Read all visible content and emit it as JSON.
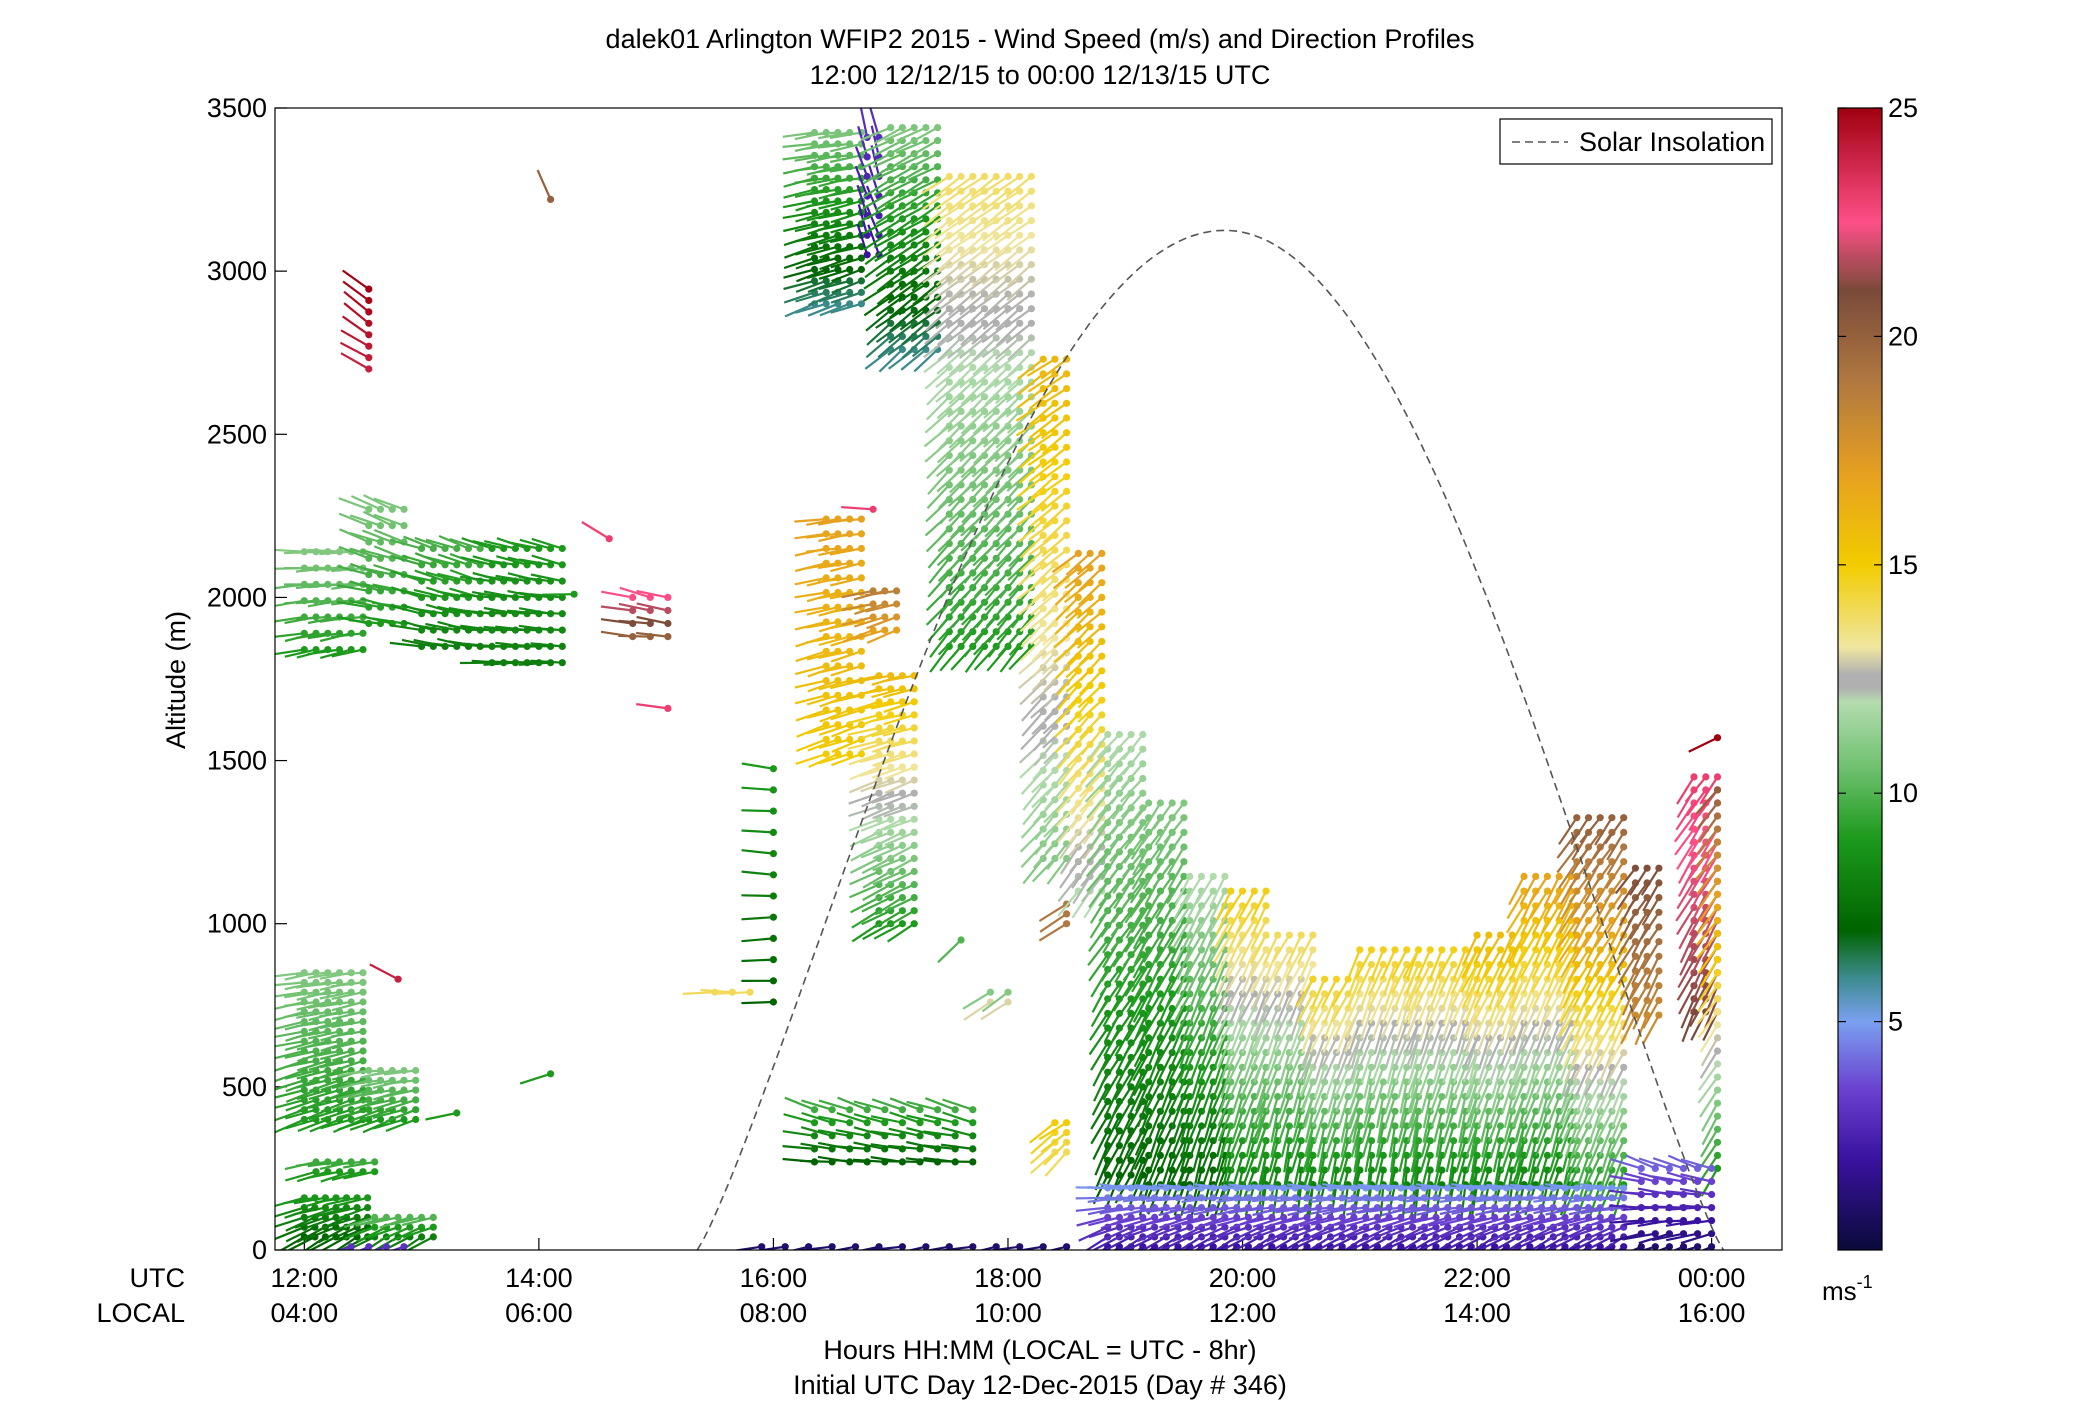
{
  "chart_data": {
    "type": "wind-profile",
    "title": "dalek01 Arlington WFIP2 2015 - Wind Speed (m/s) and Direction Profiles",
    "subtitle": "12:00 12/12/15 to 00:00 12/13/15  UTC",
    "ylabel": "Altitude (m)",
    "ylim": [
      0,
      3500
    ],
    "yticks": [
      0,
      500,
      1000,
      1500,
      2000,
      2500,
      3000,
      3500
    ],
    "xlim_hours_utc": [
      11.75,
      24.6
    ],
    "x_axis": {
      "utc_row_label": "UTC",
      "local_row_label": "LOCAL",
      "utc_ticks": [
        {
          "hour": 12,
          "utc": "12:00",
          "local": "04:00"
        },
        {
          "hour": 14,
          "utc": "14:00",
          "local": "06:00"
        },
        {
          "hour": 16,
          "utc": "16:00",
          "local": "08:00"
        },
        {
          "hour": 18,
          "utc": "18:00",
          "local": "10:00"
        },
        {
          "hour": 20,
          "utc": "20:00",
          "local": "12:00"
        },
        {
          "hour": 22,
          "utc": "22:00",
          "local": "14:00"
        },
        {
          "hour": 24,
          "utc": "00:00",
          "local": "16:00"
        }
      ],
      "xlabel": "Hours HH:MM  (LOCAL = UTC - 8hr)",
      "xlabel2": "Initial UTC Day 12-Dec-2015 (Day # 346)"
    },
    "legend": {
      "entry": "Solar Insolation",
      "placement": "top-right",
      "style": "dashed gray"
    },
    "solar_insolation_curve": {
      "sunrise_hour": 15.35,
      "peak_hour": 19.85,
      "sunset_hour": 24.1,
      "peak_altitude_scale": 3125
    },
    "colorbar": {
      "min": 0,
      "max": 25,
      "ticks": [
        5,
        10,
        15,
        20,
        25
      ],
      "unit_label": "ms",
      "unit_exponent": "-1",
      "stops": [
        {
          "v": 0,
          "c": "#0a0a3a"
        },
        {
          "v": 2,
          "c": "#3a12a0"
        },
        {
          "v": 3.5,
          "c": "#6a40d0"
        },
        {
          "v": 5,
          "c": "#7aa0f0"
        },
        {
          "v": 6,
          "c": "#3a8a8a"
        },
        {
          "v": 7,
          "c": "#006400"
        },
        {
          "v": 9,
          "c": "#1c9a1c"
        },
        {
          "v": 10.5,
          "c": "#6cbf6c"
        },
        {
          "v": 12,
          "c": "#b4dcb0"
        },
        {
          "v": 12.3,
          "c": "#b0b0b0"
        },
        {
          "v": 12.6,
          "c": "#b0b0b0"
        },
        {
          "v": 13.2,
          "c": "#f0e6a0"
        },
        {
          "v": 15,
          "c": "#f2cc00"
        },
        {
          "v": 17,
          "c": "#e6a020"
        },
        {
          "v": 19,
          "c": "#b07840"
        },
        {
          "v": 21,
          "c": "#7a4a3a"
        },
        {
          "v": 22.5,
          "c": "#ff4f88"
        },
        {
          "v": 25,
          "c": "#a00010"
        }
      ]
    },
    "series": [
      {
        "t0": 12.0,
        "t1": 12.55,
        "dt": 0.09,
        "z0": 40,
        "z1": 170,
        "dz": 30,
        "spd": [
          7,
          9
        ],
        "dir": [
          240,
          260
        ]
      },
      {
        "t0": 12.6,
        "t1": 13.1,
        "dt": 0.1,
        "z0": 40,
        "z1": 100,
        "dz": 30,
        "spd": [
          8,
          10
        ],
        "dir": [
          240,
          255
        ]
      },
      {
        "t0": 12.1,
        "t1": 12.6,
        "dt": 0.1,
        "z0": 240,
        "z1": 290,
        "dz": 30,
        "spd": [
          9,
          10
        ],
        "dir": [
          255,
          265
        ]
      },
      {
        "t0": 12.0,
        "t1": 12.5,
        "dt": 0.1,
        "z0": 400,
        "z1": 870,
        "dz": 30,
        "spd": [
          9,
          11
        ],
        "dir": [
          250,
          262
        ]
      },
      {
        "t0": 12.55,
        "t1": 12.95,
        "dt": 0.1,
        "z0": 400,
        "z1": 560,
        "dz": 30,
        "spd": [
          9,
          11
        ],
        "dir": [
          250,
          262
        ]
      },
      {
        "t0": 13.3,
        "t1": 13.35,
        "dt": 0.1,
        "z0": 420,
        "z1": 430,
        "dz": 30,
        "spd": [
          9,
          9
        ],
        "dir": [
          255,
          255
        ]
      },
      {
        "t0": 14.1,
        "t1": 14.15,
        "dt": 0.1,
        "z0": 540,
        "z1": 560,
        "dz": 30,
        "spd": [
          9,
          9
        ],
        "dir": [
          255,
          255
        ]
      },
      {
        "t0": 12.8,
        "t1": 12.85,
        "dt": 0.1,
        "z0": 830,
        "z1": 830,
        "dz": 30,
        "spd": [
          24,
          24
        ],
        "dir": [
          300,
          300
        ]
      },
      {
        "t0": 12.0,
        "t1": 12.5,
        "dt": 0.1,
        "z0": 1840,
        "z1": 2150,
        "dz": 50,
        "spd": [
          9,
          11
        ],
        "dir": [
          258,
          270
        ]
      },
      {
        "t0": 12.55,
        "t1": 12.9,
        "dt": 0.1,
        "z0": 1920,
        "z1": 2300,
        "dz": 50,
        "spd": [
          9,
          11
        ],
        "dir": [
          280,
          295
        ]
      },
      {
        "t0": 13.0,
        "t1": 13.55,
        "dt": 0.1,
        "z0": 1850,
        "z1": 2180,
        "dz": 50,
        "spd": [
          8,
          10
        ],
        "dir": [
          280,
          290
        ]
      },
      {
        "t0": 13.6,
        "t1": 14.2,
        "dt": 0.1,
        "z0": 1800,
        "z1": 2150,
        "dz": 50,
        "spd": [
          8,
          9
        ],
        "dir": [
          270,
          285
        ]
      },
      {
        "t0": 14.3,
        "t1": 14.35,
        "dt": 0.1,
        "z0": 2010,
        "z1": 2010,
        "dz": 30,
        "spd": [
          9,
          9
        ],
        "dir": [
          265,
          265
        ]
      },
      {
        "t0": 12.55,
        "t1": 12.6,
        "dt": 0.1,
        "z0": 2700,
        "z1": 2960,
        "dz": 35,
        "spd": [
          24,
          25
        ],
        "dir": [
          300,
          310
        ]
      },
      {
        "t0": 14.1,
        "t1": 14.15,
        "dt": 0.1,
        "z0": 3220,
        "z1": 3220,
        "dz": 30,
        "spd": [
          20,
          20
        ],
        "dir": [
          340,
          340
        ]
      },
      {
        "t0": 14.6,
        "t1": 14.65,
        "dt": 0.1,
        "z0": 2180,
        "z1": 2180,
        "dz": 30,
        "spd": [
          23,
          23
        ],
        "dir": [
          300,
          300
        ]
      },
      {
        "t0": 14.8,
        "t1": 15.1,
        "dt": 0.15,
        "z0": 1880,
        "z1": 2020,
        "dz": 40,
        "spd": [
          20,
          23
        ],
        "dir": [
          275,
          285
        ]
      },
      {
        "t0": 15.1,
        "t1": 15.15,
        "dt": 0.1,
        "z0": 1660,
        "z1": 1660,
        "dz": 30,
        "spd": [
          23,
          23
        ],
        "dir": [
          280,
          280
        ]
      },
      {
        "t0": 15.5,
        "t1": 15.8,
        "dt": 0.15,
        "z0": 790,
        "z1": 790,
        "dz": 30,
        "spd": [
          14,
          10
        ],
        "dir": [
          270,
          270
        ]
      },
      {
        "t0": 16.0,
        "t1": 16.05,
        "dt": 0.1,
        "z0": 760,
        "z1": 1490,
        "dz": 65,
        "spd": [
          7,
          9
        ],
        "dir": [
          265,
          278
        ]
      },
      {
        "t0": 16.45,
        "t1": 16.8,
        "dt": 0.1,
        "z0": 1520,
        "z1": 2260,
        "dz": 45,
        "spd": [
          15,
          17
        ],
        "dir": [
          250,
          262
        ]
      },
      {
        "t0": 16.9,
        "t1": 17.2,
        "dt": 0.1,
        "z0": 1000,
        "z1": 1780,
        "dz": 40,
        "spd": [
          9,
          16
        ],
        "dir": [
          240,
          258
        ]
      },
      {
        "t0": 16.85,
        "t1": 17.1,
        "dt": 0.1,
        "z0": 1900,
        "z1": 2050,
        "dz": 40,
        "spd": [
          17,
          19
        ],
        "dir": [
          250,
          260
        ]
      },
      {
        "t0": 16.85,
        "t1": 16.9,
        "dt": 0.1,
        "z0": 2270,
        "z1": 2270,
        "dz": 30,
        "spd": [
          23,
          23
        ],
        "dir": [
          270,
          270
        ]
      },
      {
        "t0": 16.35,
        "t1": 17.8,
        "dt": 0.15,
        "z0": 270,
        "z1": 450,
        "dz": 40,
        "spd": [
          7,
          10
        ],
        "dir": [
          275,
          290
        ]
      },
      {
        "t0": 17.6,
        "t1": 17.65,
        "dt": 0.1,
        "z0": 950,
        "z1": 950,
        "dz": 30,
        "spd": [
          10,
          10
        ],
        "dir": [
          230,
          230
        ]
      },
      {
        "t0": 17.85,
        "t1": 18.0,
        "dt": 0.15,
        "z0": 760,
        "z1": 790,
        "dz": 30,
        "spd": [
          13,
          11
        ],
        "dir": [
          235,
          235
        ]
      },
      {
        "t0": 18.4,
        "t1": 18.55,
        "dt": 0.1,
        "z0": 300,
        "z1": 390,
        "dz": 30,
        "spd": [
          14,
          15
        ],
        "dir": [
          225,
          235
        ]
      },
      {
        "t0": 18.5,
        "t1": 18.55,
        "dt": 0.1,
        "z0": 1000,
        "z1": 1060,
        "dz": 30,
        "spd": [
          19,
          19
        ],
        "dir": [
          240,
          240
        ]
      },
      {
        "t0": 16.35,
        "t1": 16.75,
        "dt": 0.1,
        "z0": 2900,
        "z1": 3450,
        "dz": 35,
        "spd": [
          6,
          11
        ],
        "dir": [
          250,
          262
        ]
      },
      {
        "t0": 16.8,
        "t1": 16.95,
        "dt": 0.1,
        "z0": 3050,
        "z1": 3450,
        "dz": 60,
        "spd": [
          2,
          3
        ],
        "dir": [
          340,
          345
        ]
      },
      {
        "t0": 17.0,
        "t1": 17.45,
        "dt": 0.1,
        "z0": 2760,
        "z1": 3460,
        "dz": 40,
        "spd": [
          6,
          11
        ],
        "dir": [
          230,
          245
        ]
      },
      {
        "t0": 17.5,
        "t1": 18.25,
        "dt": 0.1,
        "z0": 1850,
        "z1": 3330,
        "dz": 45,
        "spd": [
          9,
          14
        ],
        "dir": [
          220,
          235
        ]
      },
      {
        "t0": 18.3,
        "t1": 18.55,
        "dt": 0.1,
        "z0": 1200,
        "z1": 2740,
        "dz": 45,
        "spd": [
          11,
          16
        ],
        "dir": [
          220,
          235
        ]
      },
      {
        "t0": 18.6,
        "t1": 18.85,
        "dt": 0.1,
        "z0": 1100,
        "z1": 2140,
        "dz": 45,
        "spd": [
          12,
          17
        ],
        "dir": [
          215,
          230
        ]
      },
      {
        "t0": 18.85,
        "t1": 19.2,
        "dt": 0.1,
        "z0": 230,
        "z1": 1620,
        "dz": 45,
        "spd": [
          7,
          12
        ],
        "dir": [
          205,
          222
        ]
      },
      {
        "t0": 19.2,
        "t1": 19.5,
        "dt": 0.1,
        "z0": 200,
        "z1": 1380,
        "dz": 45,
        "spd": [
          7,
          11
        ],
        "dir": [
          200,
          215
        ]
      },
      {
        "t0": 19.55,
        "t1": 19.9,
        "dt": 0.1,
        "z0": 200,
        "z1": 1160,
        "dz": 45,
        "spd": [
          7,
          12
        ],
        "dir": [
          195,
          210
        ]
      },
      {
        "t0": 19.9,
        "t1": 20.2,
        "dt": 0.1,
        "z0": 200,
        "z1": 1130,
        "dz": 45,
        "spd": [
          8,
          15
        ],
        "dir": [
          195,
          210
        ]
      },
      {
        "t0": 20.2,
        "t1": 20.6,
        "dt": 0.1,
        "z0": 200,
        "z1": 970,
        "dz": 45,
        "spd": [
          8,
          14
        ],
        "dir": [
          190,
          208
        ]
      },
      {
        "t0": 20.6,
        "t1": 21.0,
        "dt": 0.1,
        "z0": 200,
        "z1": 870,
        "dz": 45,
        "spd": [
          8,
          15
        ],
        "dir": [
          190,
          208
        ]
      },
      {
        "t0": 21.0,
        "t1": 21.5,
        "dt": 0.1,
        "z0": 200,
        "z1": 950,
        "dz": 45,
        "spd": [
          8,
          15
        ],
        "dir": [
          188,
          205
        ]
      },
      {
        "t0": 21.5,
        "t1": 22.0,
        "dt": 0.1,
        "z0": 200,
        "z1": 950,
        "dz": 45,
        "spd": [
          8,
          15
        ],
        "dir": [
          190,
          205
        ]
      },
      {
        "t0": 22.0,
        "t1": 22.4,
        "dt": 0.1,
        "z0": 200,
        "z1": 990,
        "dz": 45,
        "spd": [
          8,
          16
        ],
        "dir": [
          192,
          208
        ]
      },
      {
        "t0": 22.4,
        "t1": 22.85,
        "dt": 0.1,
        "z0": 200,
        "z1": 1170,
        "dz": 45,
        "spd": [
          8,
          17
        ],
        "dir": [
          195,
          210
        ]
      },
      {
        "t0": 22.85,
        "t1": 23.3,
        "dt": 0.1,
        "z0": 200,
        "z1": 1330,
        "dz": 45,
        "spd": [
          9,
          20
        ],
        "dir": [
          200,
          215
        ]
      },
      {
        "t0": 23.35,
        "t1": 23.55,
        "dt": 0.1,
        "z0": 720,
        "z1": 1210,
        "dz": 45,
        "spd": [
          18,
          21
        ],
        "dir": [
          205,
          215
        ]
      },
      {
        "t0": 23.85,
        "t1": 24.05,
        "dt": 0.1,
        "z0": 730,
        "z1": 1450,
        "dz": 40,
        "spd": [
          21,
          23
        ],
        "dir": [
          205,
          215
        ]
      },
      {
        "t0": 24.05,
        "t1": 24.1,
        "dt": 0.1,
        "z0": 250,
        "z1": 1410,
        "dz": 40,
        "spd": [
          9,
          20
        ],
        "dir": [
          210,
          220
        ]
      },
      {
        "t0": 24.05,
        "t1": 24.1,
        "dt": 0.1,
        "z0": 1570,
        "z1": 1570,
        "dz": 30,
        "spd": [
          25,
          25
        ],
        "dir": [
          240,
          240
        ]
      },
      {
        "t0": 18.85,
        "t1": 23.3,
        "dt": 0.1,
        "z0": 10,
        "z1": 200,
        "dz": 30,
        "spd": [
          2,
          5
        ],
        "dir": [
          235,
          275
        ]
      },
      {
        "t0": 23.4,
        "t1": 24.1,
        "dt": 0.12,
        "z0": 10,
        "z1": 250,
        "dz": 40,
        "spd": [
          1,
          4
        ],
        "dir": [
          250,
          290
        ]
      },
      {
        "t0": 15.9,
        "t1": 18.5,
        "dt": 0.2,
        "z0": 10,
        "z1": 30,
        "dz": 30,
        "spd": [
          1,
          4
        ],
        "dir": [
          260,
          280
        ]
      },
      {
        "t0": 12.4,
        "t1": 12.85,
        "dt": 0.15,
        "z0": 10,
        "z1": 20,
        "dz": 30,
        "spd": [
          3,
          4
        ],
        "dir": [
          250,
          260
        ]
      }
    ]
  }
}
